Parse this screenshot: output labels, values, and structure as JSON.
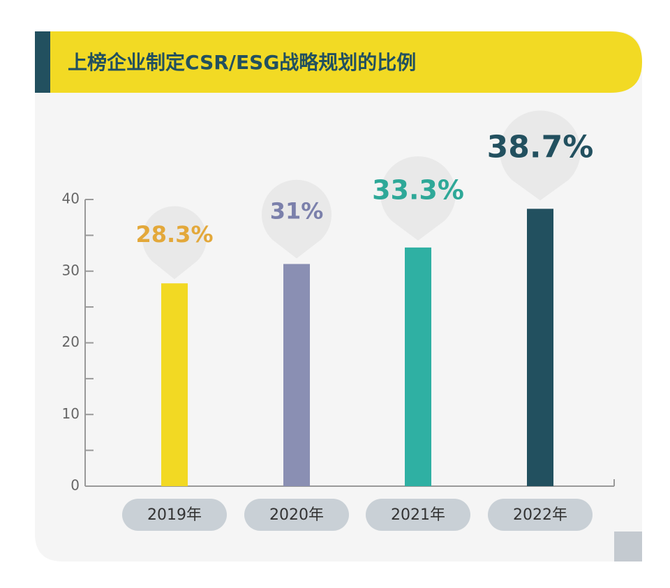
{
  "chart_data": {
    "type": "bar",
    "title": "上榜企业制定CSR/ESG战略规划的比例",
    "categories": [
      "2019年",
      "2020年",
      "2021年",
      "2022年"
    ],
    "values": [
      28.3,
      31,
      33.3,
      38.7
    ],
    "value_labels": [
      "28.3%",
      "31%",
      "33.3%",
      "38.7%"
    ],
    "colors": [
      "#f2d923",
      "#8a8fb3",
      "#2fb0a3",
      "#22505f"
    ],
    "label_colors": [
      "#e3a83a",
      "#7b80ab",
      "#2ea898",
      "#22505f"
    ],
    "ylim": [
      0,
      40
    ],
    "yticks": [
      0,
      10,
      20,
      30,
      40
    ],
    "minor_yticks": [
      5,
      15,
      25,
      35
    ],
    "grid": false
  }
}
